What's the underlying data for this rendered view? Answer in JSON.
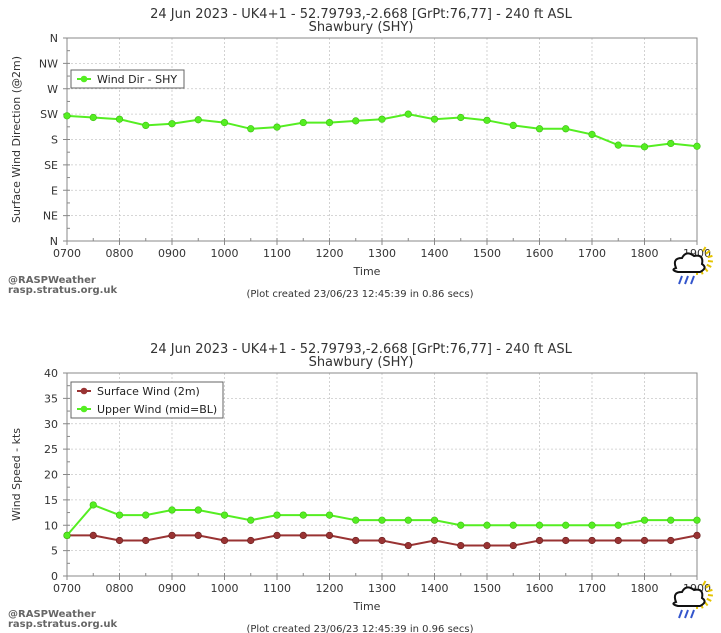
{
  "credit": {
    "line1": "@RASPWeather",
    "line2": "rasp.stratus.org.uk"
  },
  "logo_icon": "sun-cloud-rain-icon",
  "chart_data": [
    {
      "type": "line",
      "title": "24 Jun 2023 - UK4+1 - 52.79793,-2.668 [GrPt:76,77]  - 240 ft ASL",
      "subtitle": "Shawbury (SHY)",
      "xlabel": "Time",
      "ylabel": "Surface Wind Direction (@2m)",
      "x": [
        "0700",
        "0730",
        "0800",
        "0830",
        "0900",
        "0930",
        "1000",
        "1030",
        "1100",
        "1130",
        "1200",
        "1230",
        "1300",
        "1330",
        "1400",
        "1430",
        "1500",
        "1530",
        "1600",
        "1630",
        "1700",
        "1730",
        "1800",
        "1830",
        "1900"
      ],
      "x_tick_labels": [
        "0700",
        "0800",
        "0900",
        "1000",
        "1100",
        "1200",
        "1300",
        "1400",
        "1500",
        "1600",
        "1700",
        "1800",
        "1900"
      ],
      "y_tick_labels": [
        "N",
        "NE",
        "E",
        "SE",
        "S",
        "SW",
        "W",
        "NW",
        "N"
      ],
      "ylim": [
        0,
        360
      ],
      "grid": true,
      "legend": "top-left",
      "series": [
        {
          "name": "Wind Dir - SHY",
          "color": "#55ee22",
          "values": [
            222,
            219,
            216,
            205,
            208,
            215,
            210,
            199,
            202,
            210,
            210,
            213,
            216,
            225,
            216,
            219,
            214,
            205,
            199,
            199,
            189,
            170,
            167,
            173,
            168
          ]
        }
      ],
      "footer": "(Plot created 23/06/23 12:45:39 in 0.86 secs)"
    },
    {
      "type": "line",
      "title": "24 Jun 2023 - UK4+1 - 52.79793,-2.668 [GrPt:76,77]  - 240 ft ASL",
      "subtitle": "Shawbury (SHY)",
      "xlabel": "Time",
      "ylabel": "Wind Speed - kts",
      "x": [
        "0700",
        "0730",
        "0800",
        "0830",
        "0900",
        "0930",
        "1000",
        "1030",
        "1100",
        "1130",
        "1200",
        "1230",
        "1300",
        "1330",
        "1400",
        "1430",
        "1500",
        "1530",
        "1600",
        "1630",
        "1700",
        "1730",
        "1800",
        "1830",
        "1900"
      ],
      "x_tick_labels": [
        "0700",
        "0800",
        "0900",
        "1000",
        "1100",
        "1200",
        "1300",
        "1400",
        "1500",
        "1600",
        "1700",
        "1800",
        "1900"
      ],
      "y_tick_labels": [
        "0",
        "5",
        "10",
        "15",
        "20",
        "25",
        "30",
        "35",
        "40"
      ],
      "ylim": [
        0,
        40
      ],
      "grid": true,
      "legend": "top-left",
      "series": [
        {
          "name": "Surface Wind (2m)",
          "color": "#993333",
          "values": [
            8,
            8,
            7,
            7,
            8,
            8,
            7,
            7,
            8,
            8,
            8,
            7,
            7,
            6,
            7,
            6,
            6,
            6,
            7,
            7,
            7,
            7,
            7,
            7,
            8
          ]
        },
        {
          "name": "Upper Wind (mid=BL)",
          "color": "#55ee22",
          "values": [
            8,
            14,
            12,
            12,
            13,
            13,
            12,
            11,
            12,
            12,
            12,
            11,
            11,
            11,
            11,
            10,
            10,
            10,
            10,
            10,
            10,
            10,
            11,
            11,
            11
          ]
        }
      ],
      "footer": "(Plot created 23/06/23 12:45:39 in 0.96 secs)"
    }
  ]
}
